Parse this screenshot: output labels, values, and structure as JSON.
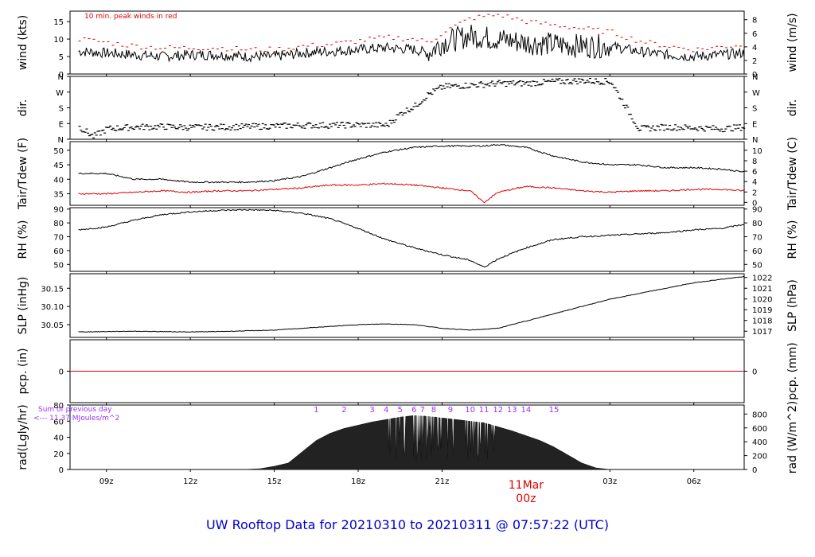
{
  "title": "UW Rooftop Data for 20210310  to  20210311 @ 07:57:22  (UTC)",
  "colors": {
    "series": "#000000",
    "peak": "#e00000",
    "pcp": "#e00000",
    "note": "#9b30ff",
    "title": "#0000cc"
  },
  "x_axis": {
    "tick_labels": [
      "09z",
      "12z",
      "15z",
      "18z",
      "21z",
      "03z",
      "06z"
    ],
    "date_label": "11Mar",
    "date_hour": "00z"
  },
  "chart_data": [
    {
      "type": "line",
      "name": "wind",
      "left_label": "wind (kts)",
      "right_label": "wind (m/s)",
      "left_ticks": [
        "0",
        "5",
        "10",
        "15"
      ],
      "right_ticks": [
        "0",
        "2",
        "4",
        "6",
        "8"
      ],
      "ylim": [
        0,
        18
      ],
      "annotation": "10 min. peak winds in red",
      "x_hours": [
        8,
        9,
        10,
        11,
        12,
        13,
        14,
        15,
        16,
        17,
        18,
        19,
        20,
        20.5,
        21,
        22,
        23,
        24,
        25,
        26,
        27,
        28,
        29,
        30,
        31.8
      ],
      "series": [
        {
          "name": "wind",
          "values": [
            6.5,
            6,
            5.5,
            5,
            5.5,
            5.5,
            5,
            5,
            6,
            6.5,
            7,
            7.5,
            7,
            6,
            9,
            11,
            10,
            9,
            8.5,
            8,
            8,
            6.5,
            5.5,
            5,
            6
          ]
        },
        {
          "name": "10 min. peak winds",
          "values": [
            10,
            9,
            8,
            7.5,
            7.5,
            7.5,
            7,
            7,
            8,
            8.5,
            9.5,
            10.5,
            10,
            9,
            12,
            16,
            17,
            15,
            14,
            13,
            12,
            9.5,
            8,
            7,
            8.5
          ]
        }
      ]
    },
    {
      "type": "scatter",
      "name": "dir",
      "left_label": "dir.",
      "right_label": "dir.",
      "left_ticks": [
        "N",
        "E",
        "S",
        "W",
        "N"
      ],
      "right_ticks": [
        "N",
        "E",
        "S",
        "W",
        "N"
      ],
      "ylim": [
        0,
        360
      ],
      "x_hours": [
        8,
        8.5,
        9,
        10,
        11,
        12,
        13,
        14,
        15,
        16,
        17,
        18,
        19,
        19.5,
        20,
        20.5,
        21,
        22,
        23,
        24,
        25,
        26,
        27,
        28,
        29,
        30,
        31,
        31.8
      ],
      "values": [
        70,
        15,
        60,
        70,
        72,
        68,
        70,
        72,
        75,
        80,
        80,
        82,
        80,
        150,
        190,
        260,
        300,
        310,
        320,
        320,
        330,
        335,
        330,
        60,
        70,
        65,
        60,
        70
      ]
    },
    {
      "type": "line",
      "name": "temp",
      "left_label": "Tair/Tdew (F)",
      "right_label": "Tair/Tdew (C)",
      "left_ticks": [
        "35",
        "40",
        "45",
        "50"
      ],
      "right_ticks": [
        "0",
        "2",
        "4",
        "6",
        "8",
        "10"
      ],
      "ylim": [
        31,
        53
      ],
      "x_hours": [
        8,
        9,
        10,
        11,
        12,
        13,
        14,
        15,
        16,
        17,
        18,
        19,
        20,
        21,
        22,
        22.5,
        23,
        24,
        25,
        26,
        27,
        28,
        29,
        30,
        31,
        31.8
      ],
      "series": [
        {
          "name": "Tair",
          "values": [
            42,
            42,
            40,
            40,
            39,
            39,
            39,
            39.5,
            41,
            44,
            47,
            49.5,
            51,
            51.5,
            51.5,
            51.5,
            52,
            51,
            48,
            46,
            45,
            45,
            44,
            44,
            43.5,
            42.5
          ]
        },
        {
          "name": "Tdew",
          "values": [
            35,
            35,
            35.5,
            36,
            35.5,
            36,
            36,
            36.5,
            37,
            38,
            38,
            38.5,
            38,
            37,
            36,
            32,
            35.5,
            37.5,
            37,
            36,
            35.5,
            36,
            36,
            36.5,
            36.5,
            36
          ]
        }
      ]
    },
    {
      "type": "line",
      "name": "rh",
      "left_label": "RH (%)",
      "right_label": "RH (%)",
      "left_ticks": [
        "50",
        "60",
        "70",
        "80",
        "90"
      ],
      "right_ticks": [
        "50",
        "60",
        "70",
        "80",
        "90"
      ],
      "ylim": [
        45,
        91
      ],
      "x_hours": [
        8,
        9,
        10,
        11,
        12,
        13,
        14,
        15,
        16,
        17,
        18,
        19,
        20,
        21,
        22,
        22.5,
        23,
        24,
        25,
        26,
        27,
        28,
        29,
        30,
        31,
        31.8
      ],
      "series": [
        {
          "name": "RH",
          "values": [
            75,
            77,
            82,
            86,
            88,
            89,
            89.5,
            89,
            87,
            83,
            76,
            68,
            62,
            57,
            53,
            48,
            54,
            62,
            68,
            70,
            71,
            72,
            73,
            75,
            76,
            79
          ]
        }
      ]
    },
    {
      "type": "line",
      "name": "slp",
      "left_label": "SLP (inHg)",
      "right_label": "SLP (hPa)",
      "left_ticks": [
        "30.05",
        "30.10",
        "30.15"
      ],
      "right_ticks": [
        "1017",
        "1018",
        "1019",
        "1020",
        "1021",
        "1022"
      ],
      "ylim": [
        30.015,
        30.19
      ],
      "x_hours": [
        8,
        9,
        10,
        11,
        12,
        13,
        14,
        15,
        16,
        17,
        18,
        19,
        20,
        21,
        22,
        23,
        24,
        25,
        26,
        27,
        28,
        29,
        30,
        31,
        31.8
      ],
      "series": [
        {
          "name": "SLP",
          "values": [
            30.03,
            30.031,
            30.032,
            30.031,
            30.03,
            30.031,
            30.033,
            30.035,
            30.04,
            30.045,
            30.05,
            30.052,
            30.05,
            30.04,
            30.035,
            30.04,
            30.06,
            30.08,
            30.1,
            30.12,
            30.135,
            30.15,
            30.165,
            30.175,
            30.182
          ]
        }
      ]
    },
    {
      "type": "line",
      "name": "pcp",
      "left_label": "pcp. (in)",
      "right_label": "pcp. (mm)",
      "left_ticks": [
        "0"
      ],
      "right_ticks": [
        "0"
      ],
      "ylim": [
        -1,
        1
      ],
      "x_hours": [
        8,
        31.8
      ],
      "series": [
        {
          "name": "pcp",
          "values": [
            0,
            0
          ]
        }
      ]
    },
    {
      "type": "area",
      "name": "rad",
      "left_label": "rad(Lgly/hr)",
      "right_label": "rad (W/m^2)",
      "left_ticks": [
        "0",
        "20",
        "40",
        "60",
        "80"
      ],
      "right_ticks": [
        "0",
        "200",
        "400",
        "600",
        "800"
      ],
      "ylim": [
        0,
        80
      ],
      "note_line1": "Sum of previous day",
      "note_line2": "<--- 11.37 MJoules/m^2",
      "hour_marks": [
        "1",
        "2",
        "3",
        "4",
        "5",
        "6",
        "7",
        "8",
        "9",
        "10",
        "11",
        "12",
        "13",
        "14",
        "15"
      ],
      "hour_positions": [
        16.5,
        17.5,
        18.5,
        19,
        19.5,
        20,
        20.3,
        20.7,
        21.3,
        22,
        22.5,
        23,
        23.5,
        24,
        25
      ],
      "x_hours": [
        8,
        13.9,
        14.5,
        15,
        15.5,
        16,
        16.5,
        17,
        17.5,
        18,
        18.5,
        19,
        19.5,
        20,
        20.5,
        21,
        21.5,
        22,
        22.5,
        23,
        23.5,
        24,
        24.5,
        25,
        25.5,
        26,
        26.5,
        27,
        31.8
      ],
      "series": [
        {
          "name": "rad",
          "values": [
            0,
            0,
            1,
            4,
            8,
            22,
            36,
            45,
            51,
            55,
            59,
            62,
            65,
            67,
            66,
            64,
            62,
            60,
            58,
            53,
            48,
            42,
            36,
            28,
            18,
            8,
            2,
            0,
            0
          ]
        }
      ]
    }
  ]
}
